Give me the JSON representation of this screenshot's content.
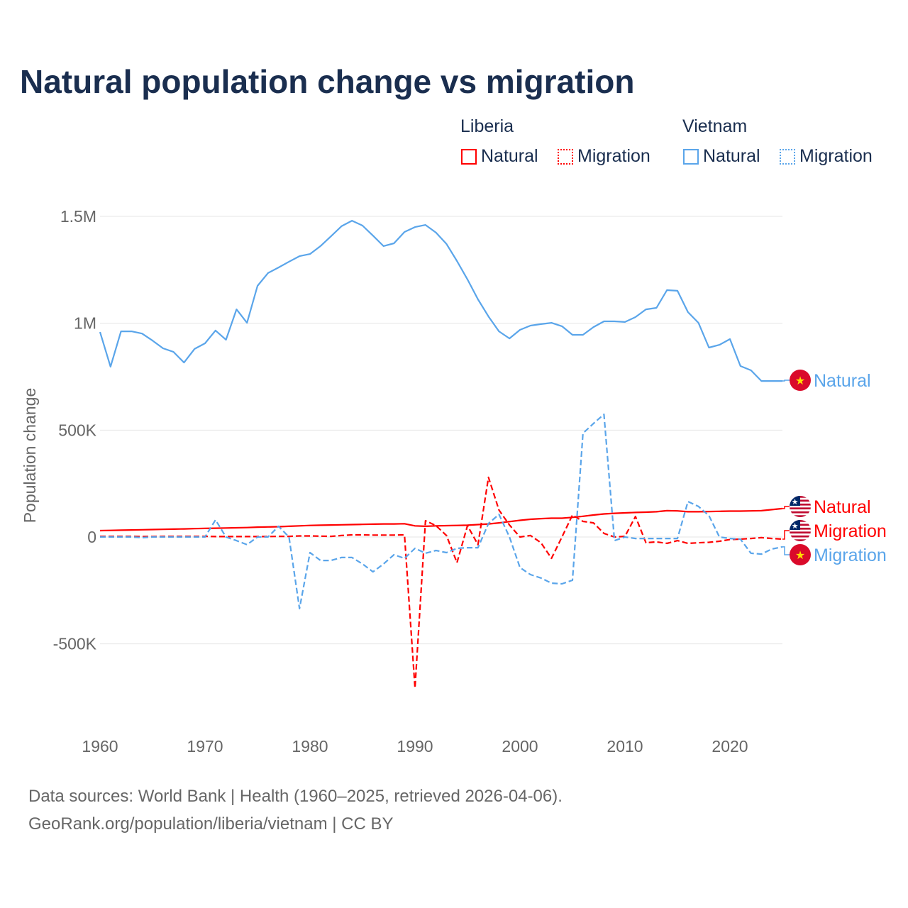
{
  "title": "Natural population change vs migration",
  "legend": {
    "groups": [
      {
        "name": "Liberia",
        "items": [
          "Natural",
          "Migration"
        ]
      },
      {
        "name": "Vietnam",
        "items": [
          "Natural",
          "Migration"
        ]
      }
    ]
  },
  "footer": {
    "line1": "Data sources: World Bank | Health (1960–2025, retrieved 2026-04-06).",
    "line2": "GeoRank.org/population/liberia/vietnam | CC BY"
  },
  "colors": {
    "liberia": "#ff0000",
    "vietnam": "#5aa5ea",
    "grid": "#e6e6e6",
    "axis_text": "#666666"
  },
  "chart_data": {
    "type": "line",
    "title": "Natural population change vs migration",
    "ylabel": "Population change",
    "xlabel": "",
    "units": "thousands",
    "ylim": [
      -750,
      1600
    ],
    "xlim": [
      1960,
      2025
    ],
    "x_ticks": [
      1960,
      1970,
      1980,
      1990,
      2000,
      2010,
      2020
    ],
    "y_ticks": [
      {
        "v": -500,
        "label": "-500K"
      },
      {
        "v": 0,
        "label": "0"
      },
      {
        "v": 500,
        "label": "500K"
      },
      {
        "v": 1000,
        "label": "1M"
      },
      {
        "v": 1500,
        "label": "1.5M"
      }
    ],
    "start_year": 1960,
    "series": [
      {
        "name": "Natural",
        "country": "Liberia",
        "color": "#ff0000",
        "dash": false,
        "flag": "liberia",
        "end_label": "Natural",
        "values": [
          30,
          31,
          32,
          33,
          34,
          35,
          36,
          37,
          38,
          39,
          40,
          41,
          42,
          43,
          44,
          46,
          47,
          48,
          50,
          52,
          54,
          55,
          56,
          57,
          58,
          59,
          60,
          61,
          61,
          62,
          52,
          50,
          52,
          53,
          54,
          55,
          58,
          61,
          66,
          72,
          78,
          83,
          86,
          88,
          88,
          92,
          97,
          103,
          108,
          111,
          113,
          115,
          116,
          118,
          123,
          122,
          118,
          118,
          119,
          120,
          121,
          121,
          122,
          123,
          128,
          133
        ]
      },
      {
        "name": "Migration",
        "country": "Liberia",
        "color": "#ff0000",
        "dash": true,
        "flag": "liberia",
        "end_label": "Migration",
        "values": [
          3,
          3,
          3,
          3,
          2,
          2,
          3,
          3,
          3,
          3,
          3,
          2,
          2,
          2,
          2,
          2,
          2,
          3,
          3,
          5,
          5,
          4,
          3,
          7,
          10,
          10,
          9,
          9,
          9,
          10,
          -707,
          76,
          53,
          7,
          -120,
          53,
          -36,
          279,
          126,
          56,
          0,
          7,
          -27,
          -100,
          0,
          103,
          73,
          66,
          17,
          0,
          3,
          96,
          -27,
          -23,
          -30,
          -17,
          -30,
          -27,
          -25,
          -20,
          -12,
          -10,
          -7,
          -3,
          -7,
          -10
        ]
      },
      {
        "name": "Natural",
        "country": "Vietnam",
        "color": "#5aa5ea",
        "dash": false,
        "flag": "vietnam",
        "end_label": "Natural",
        "values": [
          959,
          797,
          962,
          962,
          952,
          919,
          883,
          866,
          816,
          880,
          906,
          966,
          923,
          1065,
          1002,
          1175,
          1235,
          1261,
          1288,
          1314,
          1324,
          1361,
          1407,
          1454,
          1480,
          1457,
          1410,
          1361,
          1374,
          1427,
          1450,
          1460,
          1424,
          1371,
          1291,
          1205,
          1112,
          1032,
          962,
          929,
          969,
          989,
          996,
          1002,
          986,
          946,
          946,
          982,
          1009,
          1009,
          1006,
          1029,
          1065,
          1072,
          1155,
          1152,
          1052,
          1002,
          886,
          899,
          926,
          800,
          780,
          730,
          730,
          730
        ]
      },
      {
        "name": "Migration",
        "country": "Vietnam",
        "color": "#5aa5ea",
        "dash": true,
        "flag": "vietnam",
        "end_label": "Migration",
        "values": [
          0,
          0,
          0,
          0,
          -3,
          0,
          0,
          0,
          0,
          0,
          0,
          80,
          0,
          -17,
          -36,
          0,
          0,
          50,
          0,
          -335,
          -73,
          -110,
          -110,
          -96,
          -96,
          -126,
          -163,
          -126,
          -83,
          -100,
          -53,
          -76,
          -63,
          -73,
          -53,
          -50,
          -50,
          63,
          106,
          0,
          -143,
          -176,
          -192,
          -216,
          -219,
          -202,
          485,
          531,
          574,
          -17,
          0,
          -7,
          -7,
          -7,
          -7,
          -7,
          166,
          143,
          100,
          0,
          -7,
          -10,
          -76,
          -80,
          -56,
          -46
        ]
      }
    ]
  }
}
